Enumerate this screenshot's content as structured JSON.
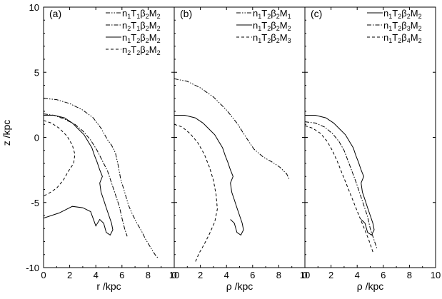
{
  "chart_data": [
    {
      "type": "line",
      "panel_label": "(a)",
      "xlabel": "r /kpc",
      "ylabel": "z /kpc",
      "xlim": [
        0,
        10
      ],
      "ylim": [
        -10,
        10
      ],
      "xticks": [
        "0",
        "2",
        "4",
        "6",
        "8",
        "10"
      ],
      "yticks": [
        "10",
        "5",
        "0",
        "-5",
        "-10"
      ],
      "legend_position": "top-right",
      "series": [
        {
          "name": "n1T1β2M2",
          "label": {
            "a": "n",
            "s1": "1",
            "b": "T",
            "s2": "1",
            "c": "β",
            "s3": "2",
            "d": "M",
            "s4": "2"
          },
          "dash": "dash-dot-dot",
          "x": [
            0.0,
            1.0,
            2.0,
            3.0,
            3.8,
            4.4,
            4.9,
            5.2,
            5.5,
            5.7,
            5.9,
            6.2,
            6.5,
            6.8,
            7.1,
            7.5,
            7.8,
            8.1,
            8.4,
            8.6,
            8.8
          ],
          "y": [
            3.0,
            2.9,
            2.6,
            2.1,
            1.5,
            0.7,
            -0.2,
            -0.6,
            -1.2,
            -2.1,
            -3.2,
            -4.2,
            -5.2,
            -5.9,
            -6.5,
            -7.2,
            -7.8,
            -8.3,
            -8.8,
            -9.1,
            -9.3
          ]
        },
        {
          "name": "n2T1β2M2",
          "label": {
            "a": "n",
            "s1": "2",
            "b": "T",
            "s2": "1",
            "c": "β",
            "s3": "2",
            "d": "M",
            "s4": "2"
          },
          "dash": "dash-dot",
          "x": [
            0.0,
            0.8,
            1.6,
            2.4,
            3.0,
            3.6,
            4.1,
            4.5,
            4.9,
            5.2,
            5.5,
            5.8,
            6.0,
            6.2,
            6.4
          ],
          "y": [
            1.8,
            1.7,
            1.4,
            1.0,
            0.5,
            -0.2,
            -1.0,
            -1.8,
            -2.6,
            -3.5,
            -4.4,
            -5.3,
            -6.2,
            -7.0,
            -7.6
          ]
        },
        {
          "name": "n1T2β2M2",
          "label": {
            "a": "n",
            "s1": "1",
            "b": "T",
            "s2": "2",
            "c": "β",
            "s3": "2",
            "d": "M",
            "s4": "2"
          },
          "dash": "solid",
          "x": [
            0.0,
            0.8,
            1.6,
            2.2,
            2.7,
            3.1,
            3.4,
            3.7,
            3.9,
            4.1,
            4.3,
            4.5,
            4.3,
            4.4,
            4.6,
            4.8,
            5.0,
            5.2,
            5.3,
            5.1,
            4.8,
            4.6,
            4.3,
            4.0,
            3.6,
            3.0,
            2.2,
            1.2,
            0.0
          ],
          "y": [
            1.7,
            1.7,
            1.5,
            1.1,
            0.6,
            0.2,
            -0.3,
            -0.8,
            -1.4,
            -1.9,
            -2.5,
            -3.0,
            -3.5,
            -4.2,
            -4.8,
            -5.4,
            -6.0,
            -6.6,
            -7.1,
            -7.5,
            -7.3,
            -6.6,
            -6.3,
            -6.8,
            -5.7,
            -5.4,
            -5.3,
            -5.8,
            -6.2
          ]
        },
        {
          "name": "n2T2β2M2",
          "label": {
            "a": "n",
            "s1": "2",
            "b": "T",
            "s2": "2",
            "c": "β",
            "s3": "2",
            "d": "M",
            "s4": "2"
          },
          "dash": "dashed",
          "x": [
            0.0,
            0.6,
            1.2,
            1.8,
            2.2,
            2.4,
            2.3,
            1.9,
            1.5,
            1.0,
            0.4,
            0.0
          ],
          "y": [
            1.3,
            1.1,
            0.7,
            0.1,
            -0.6,
            -1.3,
            -2.0,
            -2.6,
            -3.3,
            -3.9,
            -4.3,
            -4.5
          ]
        }
      ]
    },
    {
      "type": "line",
      "panel_label": "(b)",
      "xlabel": "ρ /kpc",
      "xlim": [
        0,
        10
      ],
      "ylim": [
        -10,
        10
      ],
      "xticks": [
        "0",
        "2",
        "4",
        "6",
        "8",
        "10"
      ],
      "legend_position": "top-right",
      "series": [
        {
          "name": "n1T2β2M1",
          "label": {
            "a": "n",
            "s1": "1",
            "b": "T",
            "s2": "2",
            "c": "β",
            "s3": "2",
            "d": "M",
            "s4": "1"
          },
          "dash": "dash-dot-dot",
          "x": [
            0.0,
            1.0,
            2.0,
            3.0,
            4.0,
            4.8,
            5.5,
            6.1,
            6.8,
            7.5,
            8.1,
            8.6,
            8.8
          ],
          "y": [
            4.5,
            4.3,
            3.8,
            3.1,
            2.1,
            1.1,
            0.0,
            -0.9,
            -1.5,
            -1.9,
            -2.3,
            -2.8,
            -3.2
          ]
        },
        {
          "name": "n1T2β2M2",
          "label": {
            "a": "n",
            "s1": "1",
            "b": "T",
            "s2": "2",
            "c": "β",
            "s3": "2",
            "d": "M",
            "s4": "2"
          },
          "dash": "solid",
          "x": [
            0.0,
            0.8,
            1.6,
            2.2,
            2.7,
            3.1,
            3.4,
            3.7,
            3.9,
            4.1,
            4.3,
            4.5,
            4.3,
            4.4,
            4.6,
            4.8,
            5.0,
            5.2,
            5.3,
            5.1,
            4.8,
            4.6,
            4.3
          ],
          "y": [
            1.7,
            1.7,
            1.5,
            1.1,
            0.6,
            0.2,
            -0.3,
            -0.8,
            -1.4,
            -1.9,
            -2.5,
            -3.0,
            -3.5,
            -4.2,
            -4.8,
            -5.4,
            -6.0,
            -6.6,
            -7.1,
            -7.5,
            -7.3,
            -6.6,
            -6.3
          ]
        },
        {
          "name": "n1T2β2M3",
          "label": {
            "a": "n",
            "s1": "1",
            "b": "T",
            "s2": "2",
            "c": "β",
            "s3": "2",
            "d": "M",
            "s4": "3"
          },
          "dash": "dashed",
          "x": [
            0.0,
            0.6,
            1.2,
            1.8,
            2.3,
            2.7,
            3.0,
            3.2,
            3.3,
            3.1,
            2.7,
            2.3,
            1.9,
            1.6
          ],
          "y": [
            1.0,
            0.8,
            0.3,
            -0.4,
            -1.3,
            -2.3,
            -3.3,
            -4.4,
            -5.5,
            -6.5,
            -7.4,
            -8.2,
            -8.9,
            -9.6
          ]
        }
      ]
    },
    {
      "type": "line",
      "panel_label": "(c)",
      "xlabel": "ρ /kpc",
      "xlim": [
        0,
        10
      ],
      "ylim": [
        -10,
        10
      ],
      "xticks": [
        "0",
        "2",
        "4",
        "6",
        "8",
        "10"
      ],
      "legend_position": "top-right",
      "series": [
        {
          "name": "n1T2β2M2",
          "label": {
            "a": "n",
            "s1": "1",
            "b": "T",
            "s2": "2",
            "c": "β",
            "s3": "2",
            "d": "M",
            "s4": "2"
          },
          "dash": "solid",
          "x": [
            0.0,
            0.8,
            1.6,
            2.2,
            2.7,
            3.1,
            3.4,
            3.7,
            3.9,
            4.1,
            4.3,
            4.5,
            4.3,
            4.4,
            4.6,
            4.8,
            5.0,
            5.2,
            5.3,
            5.1,
            4.8,
            4.6,
            4.3
          ],
          "y": [
            1.7,
            1.7,
            1.5,
            1.1,
            0.6,
            0.2,
            -0.3,
            -0.8,
            -1.4,
            -1.9,
            -2.5,
            -3.0,
            -3.5,
            -4.2,
            -4.8,
            -5.4,
            -6.0,
            -6.6,
            -7.1,
            -7.5,
            -7.3,
            -6.6,
            -6.3
          ]
        },
        {
          "name": "n1T2β3M2",
          "label": {
            "a": "n",
            "s1": "1",
            "b": "T",
            "s2": "2",
            "c": "β",
            "s3": "3",
            "d": "M",
            "s4": "2"
          },
          "dash": "dash-dot",
          "x": [
            0.0,
            0.8,
            1.5,
            2.1,
            2.6,
            3.0,
            3.3,
            3.6,
            3.9,
            4.2,
            4.5,
            4.8,
            5.0,
            5.3,
            5.5
          ],
          "y": [
            1.2,
            1.1,
            0.8,
            0.3,
            -0.3,
            -1.0,
            -1.8,
            -2.6,
            -3.4,
            -4.3,
            -5.2,
            -6.1,
            -7.0,
            -7.9,
            -8.5
          ]
        },
        {
          "name": "n1T2β4M2",
          "label": {
            "a": "n",
            "s1": "1",
            "b": "T",
            "s2": "2",
            "c": "β",
            "s3": "4",
            "d": "M",
            "s4": "2"
          },
          "dash": "dashed",
          "x": [
            0.0,
            0.6,
            1.2,
            1.7,
            2.1,
            2.5,
            2.9,
            3.3,
            3.7,
            4.1,
            4.5,
            4.9,
            5.2
          ],
          "y": [
            0.9,
            0.7,
            0.3,
            -0.3,
            -1.0,
            -1.9,
            -2.9,
            -3.9,
            -4.9,
            -5.9,
            -6.9,
            -7.9,
            -8.8
          ]
        }
      ]
    }
  ]
}
